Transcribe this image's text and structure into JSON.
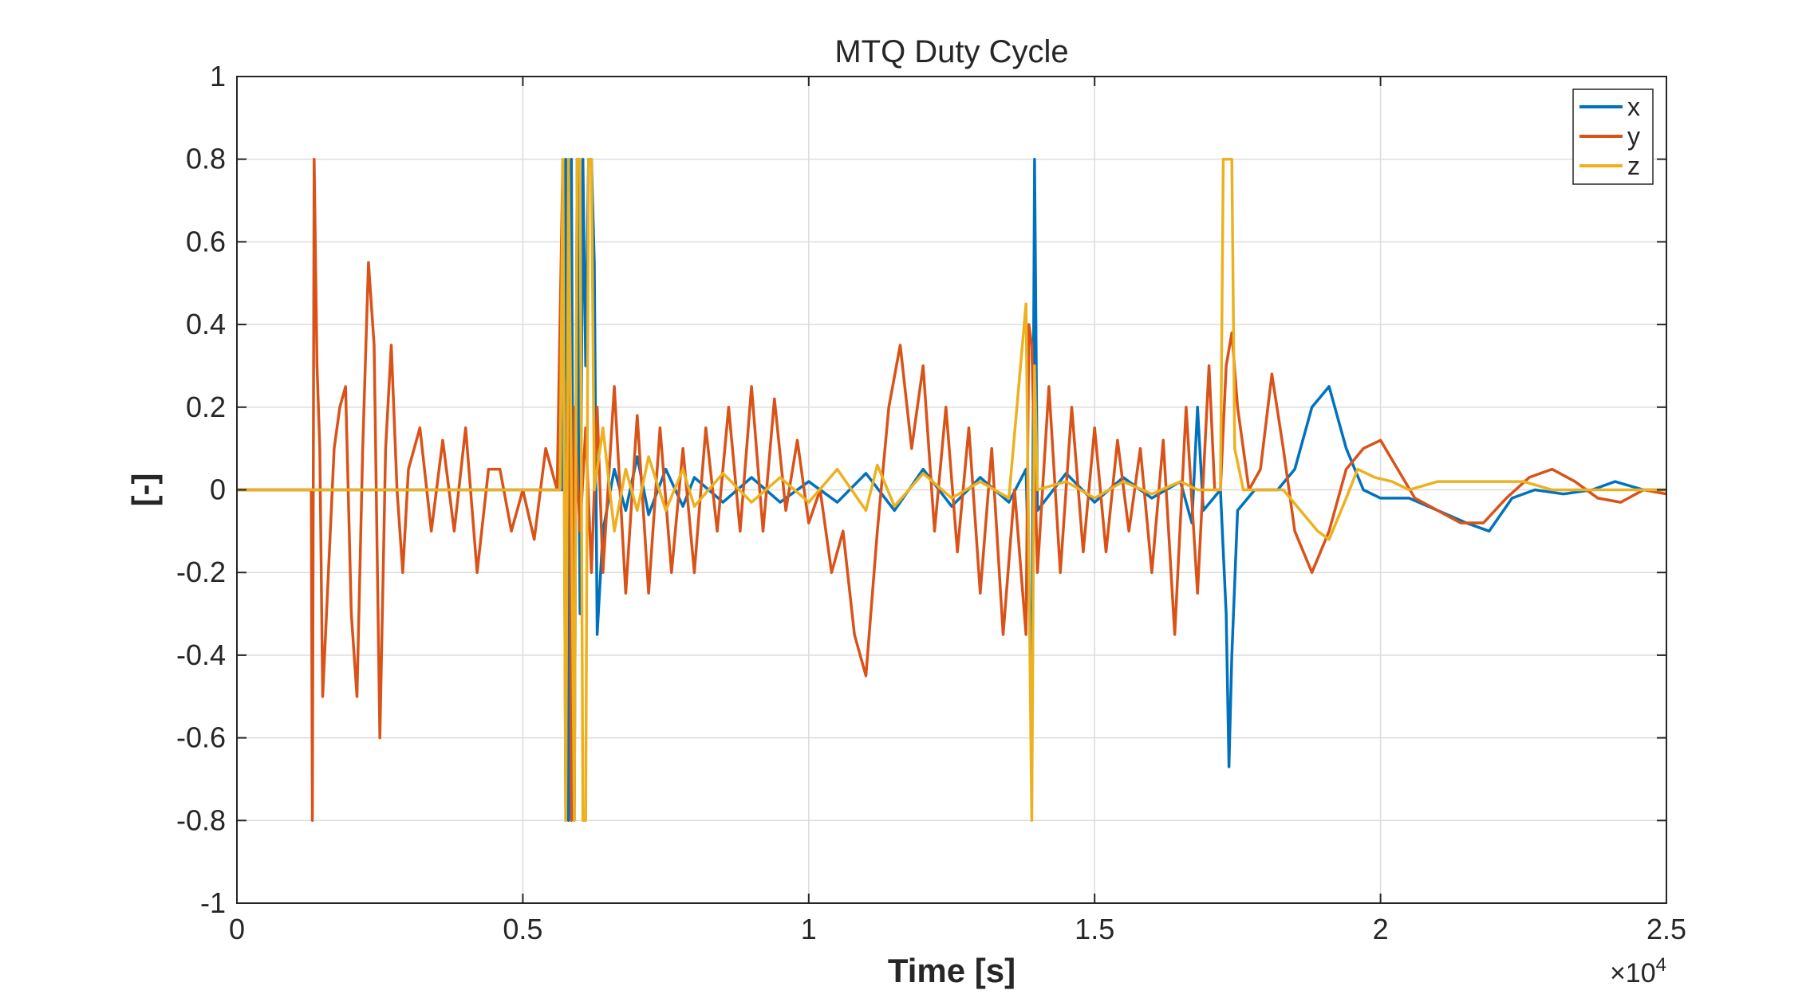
{
  "chart_data": {
    "type": "line",
    "title": "MTQ Duty Cycle",
    "xlabel": "Time [s]",
    "ylabel": "[-]",
    "x_exponent_label": "×10",
    "x_exponent_power": "4",
    "xlim": [
      0,
      2.5
    ],
    "ylim": [
      -1,
      1
    ],
    "x_ticks": [
      0,
      0.5,
      1,
      1.5,
      2,
      2.5
    ],
    "x_tick_labels": [
      "0",
      "0.5",
      "1",
      "1.5",
      "2",
      "2.5"
    ],
    "y_ticks": [
      -1,
      -0.8,
      -0.6,
      -0.4,
      -0.2,
      0,
      0.2,
      0.4,
      0.6,
      0.8,
      1
    ],
    "y_tick_labels": [
      "-1",
      "-0.8",
      "-0.6",
      "-0.4",
      "-0.2",
      "0",
      "0.2",
      "0.4",
      "0.6",
      "0.8",
      "1"
    ],
    "grid": true,
    "legend_position": "top-right",
    "series": [
      {
        "name": "x",
        "color": "#0072BD",
        "points": [
          [
            0,
            0
          ],
          [
            0.57,
            0
          ],
          [
            0.575,
            0.8
          ],
          [
            0.58,
            -0.8
          ],
          [
            0.585,
            0.8
          ],
          [
            0.59,
            -0.8
          ],
          [
            0.595,
            0.8
          ],
          [
            0.6,
            -0.3
          ],
          [
            0.605,
            0.8
          ],
          [
            0.61,
            0.3
          ],
          [
            0.615,
            0.8
          ],
          [
            0.62,
            0.8
          ],
          [
            0.625,
            0.55
          ],
          [
            0.63,
            -0.35
          ],
          [
            0.64,
            -0.1
          ],
          [
            0.66,
            0.05
          ],
          [
            0.68,
            -0.05
          ],
          [
            0.7,
            0.08
          ],
          [
            0.72,
            -0.06
          ],
          [
            0.75,
            0.05
          ],
          [
            0.78,
            -0.04
          ],
          [
            0.8,
            0.03
          ],
          [
            0.85,
            -0.03
          ],
          [
            0.9,
            0.03
          ],
          [
            0.95,
            -0.03
          ],
          [
            1.0,
            0.02
          ],
          [
            1.05,
            -0.03
          ],
          [
            1.1,
            0.04
          ],
          [
            1.15,
            -0.05
          ],
          [
            1.2,
            0.05
          ],
          [
            1.25,
            -0.04
          ],
          [
            1.3,
            0.03
          ],
          [
            1.35,
            -0.03
          ],
          [
            1.38,
            0.05
          ],
          [
            1.39,
            -0.5
          ],
          [
            1.395,
            0.8
          ],
          [
            1.4,
            -0.05
          ],
          [
            1.45,
            0.04
          ],
          [
            1.5,
            -0.03
          ],
          [
            1.55,
            0.03
          ],
          [
            1.6,
            -0.02
          ],
          [
            1.65,
            0.02
          ],
          [
            1.67,
            -0.08
          ],
          [
            1.68,
            0.2
          ],
          [
            1.69,
            -0.05
          ],
          [
            1.72,
            0.0
          ],
          [
            1.73,
            -0.3
          ],
          [
            1.735,
            -0.67
          ],
          [
            1.74,
            -0.4
          ],
          [
            1.75,
            -0.05
          ],
          [
            1.78,
            0.0
          ],
          [
            1.82,
            0.0
          ],
          [
            1.85,
            0.05
          ],
          [
            1.88,
            0.2
          ],
          [
            1.91,
            0.25
          ],
          [
            1.94,
            0.1
          ],
          [
            1.97,
            0.0
          ],
          [
            2.0,
            -0.02
          ],
          [
            2.05,
            -0.02
          ],
          [
            2.1,
            -0.05
          ],
          [
            2.15,
            -0.08
          ],
          [
            2.19,
            -0.1
          ],
          [
            2.23,
            -0.02
          ],
          [
            2.27,
            0.0
          ],
          [
            2.32,
            -0.01
          ],
          [
            2.37,
            0.0
          ],
          [
            2.41,
            0.02
          ],
          [
            2.46,
            0.0
          ],
          [
            2.5,
            0.0
          ]
        ]
      },
      {
        "name": "y",
        "color": "#D95319",
        "points": [
          [
            0,
            0
          ],
          [
            0.13,
            0
          ],
          [
            0.132,
            -0.8
          ],
          [
            0.135,
            0.8
          ],
          [
            0.14,
            0.3
          ],
          [
            0.145,
            0.1
          ],
          [
            0.15,
            -0.5
          ],
          [
            0.16,
            -0.2
          ],
          [
            0.17,
            0.1
          ],
          [
            0.18,
            0.2
          ],
          [
            0.19,
            0.25
          ],
          [
            0.2,
            -0.3
          ],
          [
            0.21,
            -0.5
          ],
          [
            0.22,
            0.1
          ],
          [
            0.23,
            0.55
          ],
          [
            0.24,
            0.35
          ],
          [
            0.25,
            -0.6
          ],
          [
            0.26,
            0.1
          ],
          [
            0.27,
            0.35
          ],
          [
            0.28,
            0.0
          ],
          [
            0.29,
            -0.2
          ],
          [
            0.3,
            0.05
          ],
          [
            0.32,
            0.15
          ],
          [
            0.34,
            -0.1
          ],
          [
            0.36,
            0.12
          ],
          [
            0.38,
            -0.1
          ],
          [
            0.4,
            0.15
          ],
          [
            0.42,
            -0.2
          ],
          [
            0.44,
            0.05
          ],
          [
            0.46,
            0.05
          ],
          [
            0.48,
            -0.1
          ],
          [
            0.5,
            0.0
          ],
          [
            0.52,
            -0.12
          ],
          [
            0.54,
            0.1
          ],
          [
            0.56,
            0.0
          ],
          [
            0.57,
            0.8
          ],
          [
            0.575,
            -0.8
          ],
          [
            0.58,
            0.8
          ],
          [
            0.585,
            -0.8
          ],
          [
            0.59,
            0.2
          ],
          [
            0.6,
            -0.1
          ],
          [
            0.61,
            0.15
          ],
          [
            0.62,
            -0.2
          ],
          [
            0.63,
            0.2
          ],
          [
            0.64,
            -0.2
          ],
          [
            0.66,
            0.25
          ],
          [
            0.68,
            -0.25
          ],
          [
            0.7,
            0.18
          ],
          [
            0.72,
            -0.25
          ],
          [
            0.74,
            0.15
          ],
          [
            0.76,
            -0.2
          ],
          [
            0.78,
            0.1
          ],
          [
            0.8,
            -0.2
          ],
          [
            0.82,
            0.15
          ],
          [
            0.84,
            -0.1
          ],
          [
            0.86,
            0.2
          ],
          [
            0.88,
            -0.1
          ],
          [
            0.9,
            0.25
          ],
          [
            0.92,
            -0.1
          ],
          [
            0.94,
            0.22
          ],
          [
            0.96,
            -0.05
          ],
          [
            0.98,
            0.12
          ],
          [
            1.0,
            -0.08
          ],
          [
            1.02,
            0.0
          ],
          [
            1.04,
            -0.2
          ],
          [
            1.06,
            -0.1
          ],
          [
            1.08,
            -0.35
          ],
          [
            1.1,
            -0.45
          ],
          [
            1.12,
            -0.1
          ],
          [
            1.14,
            0.2
          ],
          [
            1.16,
            0.35
          ],
          [
            1.18,
            0.1
          ],
          [
            1.2,
            0.3
          ],
          [
            1.22,
            -0.1
          ],
          [
            1.24,
            0.2
          ],
          [
            1.26,
            -0.15
          ],
          [
            1.28,
            0.15
          ],
          [
            1.3,
            -0.25
          ],
          [
            1.32,
            0.1
          ],
          [
            1.34,
            -0.35
          ],
          [
            1.36,
            0.0
          ],
          [
            1.38,
            -0.35
          ],
          [
            1.385,
            0.4
          ],
          [
            1.39,
            0.35
          ],
          [
            1.4,
            -0.2
          ],
          [
            1.42,
            0.25
          ],
          [
            1.44,
            -0.2
          ],
          [
            1.46,
            0.2
          ],
          [
            1.48,
            -0.15
          ],
          [
            1.5,
            0.15
          ],
          [
            1.52,
            -0.15
          ],
          [
            1.54,
            0.12
          ],
          [
            1.56,
            -0.1
          ],
          [
            1.58,
            0.1
          ],
          [
            1.6,
            -0.2
          ],
          [
            1.62,
            0.12
          ],
          [
            1.64,
            -0.35
          ],
          [
            1.66,
            0.2
          ],
          [
            1.68,
            -0.25
          ],
          [
            1.7,
            0.3
          ],
          [
            1.71,
            0.0
          ],
          [
            1.72,
            0.0
          ],
          [
            1.73,
            0.3
          ],
          [
            1.74,
            0.38
          ],
          [
            1.75,
            0.2
          ],
          [
            1.77,
            0.0
          ],
          [
            1.79,
            0.05
          ],
          [
            1.81,
            0.28
          ],
          [
            1.83,
            0.1
          ],
          [
            1.85,
            -0.1
          ],
          [
            1.88,
            -0.2
          ],
          [
            1.91,
            -0.1
          ],
          [
            1.94,
            0.05
          ],
          [
            1.97,
            0.1
          ],
          [
            2.0,
            0.12
          ],
          [
            2.03,
            0.05
          ],
          [
            2.06,
            -0.02
          ],
          [
            2.1,
            -0.05
          ],
          [
            2.14,
            -0.08
          ],
          [
            2.18,
            -0.08
          ],
          [
            2.22,
            -0.02
          ],
          [
            2.26,
            0.03
          ],
          [
            2.3,
            0.05
          ],
          [
            2.34,
            0.02
          ],
          [
            2.38,
            -0.02
          ],
          [
            2.42,
            -0.03
          ],
          [
            2.46,
            0.0
          ],
          [
            2.5,
            -0.01
          ]
        ]
      },
      {
        "name": "z",
        "color": "#EDB120",
        "points": [
          [
            0,
            0
          ],
          [
            0.565,
            0
          ],
          [
            0.57,
            0.8
          ],
          [
            0.575,
            -0.8
          ],
          [
            0.58,
            0.8
          ],
          [
            0.59,
            -0.8
          ],
          [
            0.595,
            0.8
          ],
          [
            0.6,
            0.8
          ],
          [
            0.605,
            -0.8
          ],
          [
            0.61,
            -0.8
          ],
          [
            0.615,
            0.8
          ],
          [
            0.62,
            0.8
          ],
          [
            0.625,
            0.0
          ],
          [
            0.64,
            0.15
          ],
          [
            0.66,
            -0.1
          ],
          [
            0.68,
            0.05
          ],
          [
            0.7,
            -0.05
          ],
          [
            0.72,
            0.08
          ],
          [
            0.75,
            -0.05
          ],
          [
            0.78,
            0.05
          ],
          [
            0.8,
            -0.04
          ],
          [
            0.85,
            0.04
          ],
          [
            0.9,
            -0.03
          ],
          [
            0.95,
            0.03
          ],
          [
            1.0,
            -0.03
          ],
          [
            1.05,
            0.05
          ],
          [
            1.1,
            -0.05
          ],
          [
            1.12,
            0.06
          ],
          [
            1.15,
            -0.04
          ],
          [
            1.2,
            0.04
          ],
          [
            1.25,
            -0.02
          ],
          [
            1.3,
            0.02
          ],
          [
            1.35,
            -0.02
          ],
          [
            1.38,
            0.45
          ],
          [
            1.39,
            -0.8
          ],
          [
            1.395,
            0.3
          ],
          [
            1.4,
            0.0
          ],
          [
            1.45,
            0.02
          ],
          [
            1.5,
            -0.02
          ],
          [
            1.55,
            0.02
          ],
          [
            1.6,
            -0.01
          ],
          [
            1.65,
            0.02
          ],
          [
            1.68,
            0.0
          ],
          [
            1.7,
            0.0
          ],
          [
            1.72,
            0.0
          ],
          [
            1.725,
            0.8
          ],
          [
            1.74,
            0.8
          ],
          [
            1.745,
            0.1
          ],
          [
            1.76,
            0.0
          ],
          [
            1.8,
            0.0
          ],
          [
            1.83,
            0.0
          ],
          [
            1.86,
            -0.05
          ],
          [
            1.89,
            -0.1
          ],
          [
            1.91,
            -0.12
          ],
          [
            1.94,
            -0.02
          ],
          [
            1.96,
            0.05
          ],
          [
            1.99,
            0.03
          ],
          [
            2.02,
            0.02
          ],
          [
            2.05,
            0.0
          ],
          [
            2.1,
            0.02
          ],
          [
            2.15,
            0.02
          ],
          [
            2.2,
            0.02
          ],
          [
            2.25,
            0.02
          ],
          [
            2.3,
            0.0
          ],
          [
            2.35,
            0.0
          ],
          [
            2.4,
            0.0
          ],
          [
            2.45,
            0.0
          ],
          [
            2.5,
            0.0
          ]
        ]
      }
    ]
  }
}
